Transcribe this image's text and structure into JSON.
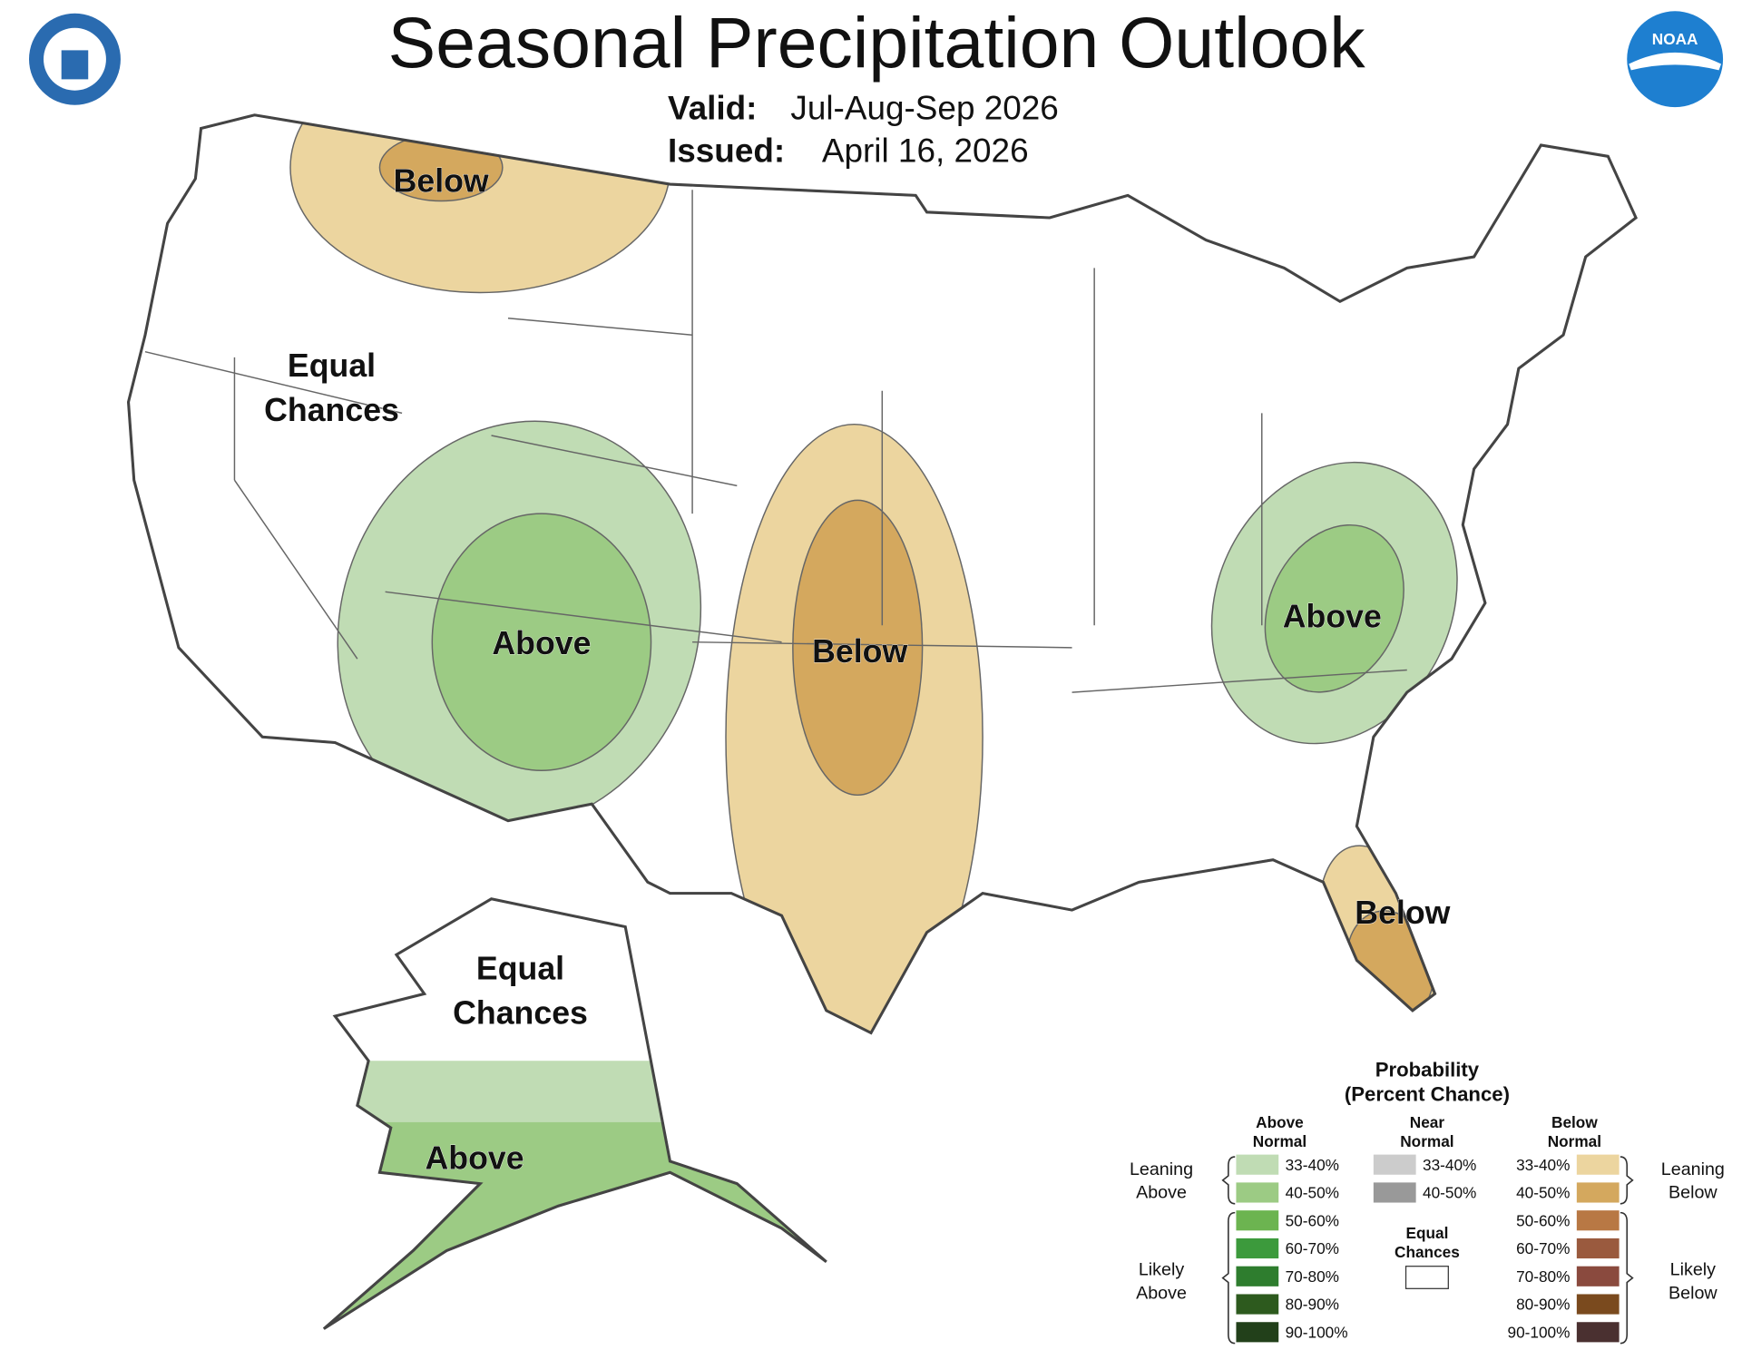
{
  "header": {
    "title": "Seasonal Precipitation Outlook",
    "valid_label": "Valid:",
    "valid": "Jul-Aug-Sep 2026",
    "issued_label": "Issued:",
    "issued": "April 16, 2026"
  },
  "logos": {
    "noaa": "NOAA"
  },
  "map_labels": [
    {
      "lines": [
        "Below"
      ]
    },
    {
      "lines": [
        "Equal",
        "Chances"
      ]
    },
    {
      "lines": [
        "Above"
      ]
    },
    {
      "lines": [
        "Below"
      ]
    },
    {
      "lines": [
        "Above"
      ]
    },
    {
      "lines": [
        "Below"
      ]
    },
    {
      "lines": [
        "Equal",
        "Chances"
      ]
    },
    {
      "lines": [
        "Above"
      ]
    }
  ],
  "legend": {
    "title": "Probability",
    "subtitle": "(Percent Chance)",
    "above": {
      "header": [
        "Above",
        "Normal"
      ],
      "ranges": [
        "33-40%",
        "40-50%",
        "50-60%",
        "60-70%",
        "70-80%",
        "80-90%",
        "90-100%"
      ]
    },
    "near": {
      "header": [
        "Near",
        "Normal"
      ],
      "ranges": [
        "33-40%",
        "40-50%"
      ]
    },
    "equal": [
      "Equal",
      "Chances"
    ],
    "below": {
      "header": [
        "Below",
        "Normal"
      ],
      "ranges": [
        "33-40%",
        "40-50%",
        "50-60%",
        "60-70%",
        "70-80%",
        "80-90%",
        "90-100%"
      ]
    },
    "leaning_above": [
      "Leaning",
      "Above"
    ],
    "likely_above": [
      "Likely",
      "Above"
    ],
    "leaning_below": [
      "Leaning",
      "Below"
    ],
    "likely_below": [
      "Likely",
      "Below"
    ]
  }
}
